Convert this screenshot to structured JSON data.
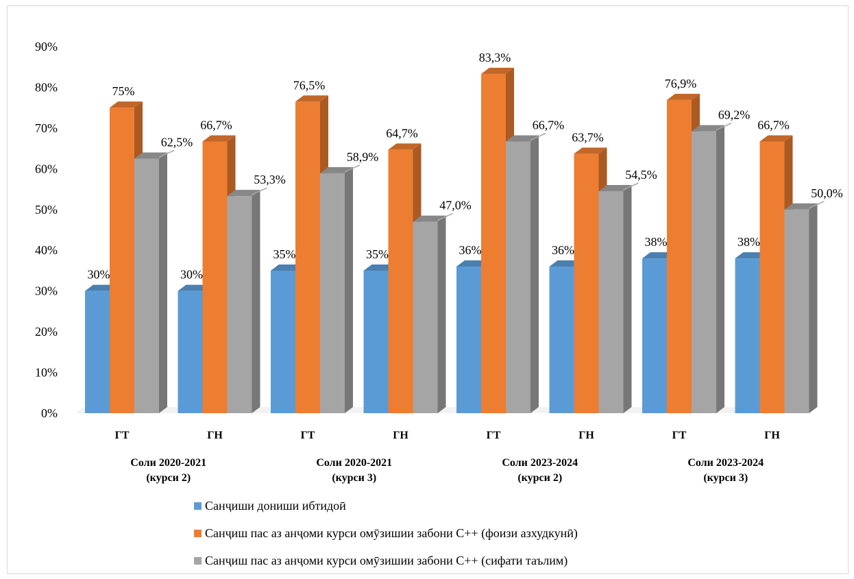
{
  "chart_data": {
    "type": "bar",
    "three_d": true,
    "y_format": "percent",
    "ylim": [
      0,
      90
    ],
    "y_ticks": [
      0,
      10,
      20,
      30,
      40,
      50,
      60,
      70,
      80,
      90
    ],
    "y_tick_labels": [
      "0%",
      "10%",
      "20%",
      "30%",
      "40%",
      "50%",
      "60%",
      "70%",
      "80%",
      "90%"
    ],
    "grid": false,
    "legend_position": "bottom",
    "categories": [
      "ГТ",
      "ГН",
      "ГТ",
      "ГН",
      "ГТ",
      "ГН",
      "ГТ",
      "ГН"
    ],
    "groups": [
      {
        "line1": "Соли 2020-2021",
        "line2": "(курси 2)"
      },
      {
        "line1": "Соли 2020-2021",
        "line2": "(курси 3)"
      },
      {
        "line1": "Соли 2023-2024",
        "line2": "(курси 2)"
      },
      {
        "line1": "Соли 2023-2024",
        "line2": "(курси 3)"
      }
    ],
    "series": [
      {
        "name": "Санҷиши дониши ибтидоӣ",
        "color": "#5b9bd5",
        "values": [
          30,
          30,
          35,
          35,
          36,
          36,
          38,
          38
        ],
        "labels": [
          "30%",
          "30%",
          "35%",
          "35%",
          "36%",
          "36%",
          "38%",
          "38%"
        ]
      },
      {
        "name": "Санҷиш пас аз анҷоми курси омӯзишии забони C++ (фоизи азхудкунӣ)",
        "color": "#ed7d31",
        "values": [
          75,
          66.7,
          76.5,
          64.7,
          83.3,
          63.7,
          76.9,
          66.7
        ],
        "labels": [
          "75%",
          "66,7%",
          "76,5%",
          "64,7%",
          "83,3%",
          "63,7%",
          "76,9%",
          "66,7%"
        ]
      },
      {
        "name": "Санҷиш пас аз анҷоми курси омӯзишии забони C++ (сифати таълим)",
        "color": "#a5a5a5",
        "values": [
          62.5,
          53.3,
          58.9,
          47.0,
          66.7,
          54.5,
          69.2,
          50.0
        ],
        "labels": [
          "62,5%",
          "53,3%",
          "58,9%",
          "47,0%",
          "66,7%",
          "54,5%",
          "69,2%",
          "50,0%"
        ]
      }
    ]
  }
}
